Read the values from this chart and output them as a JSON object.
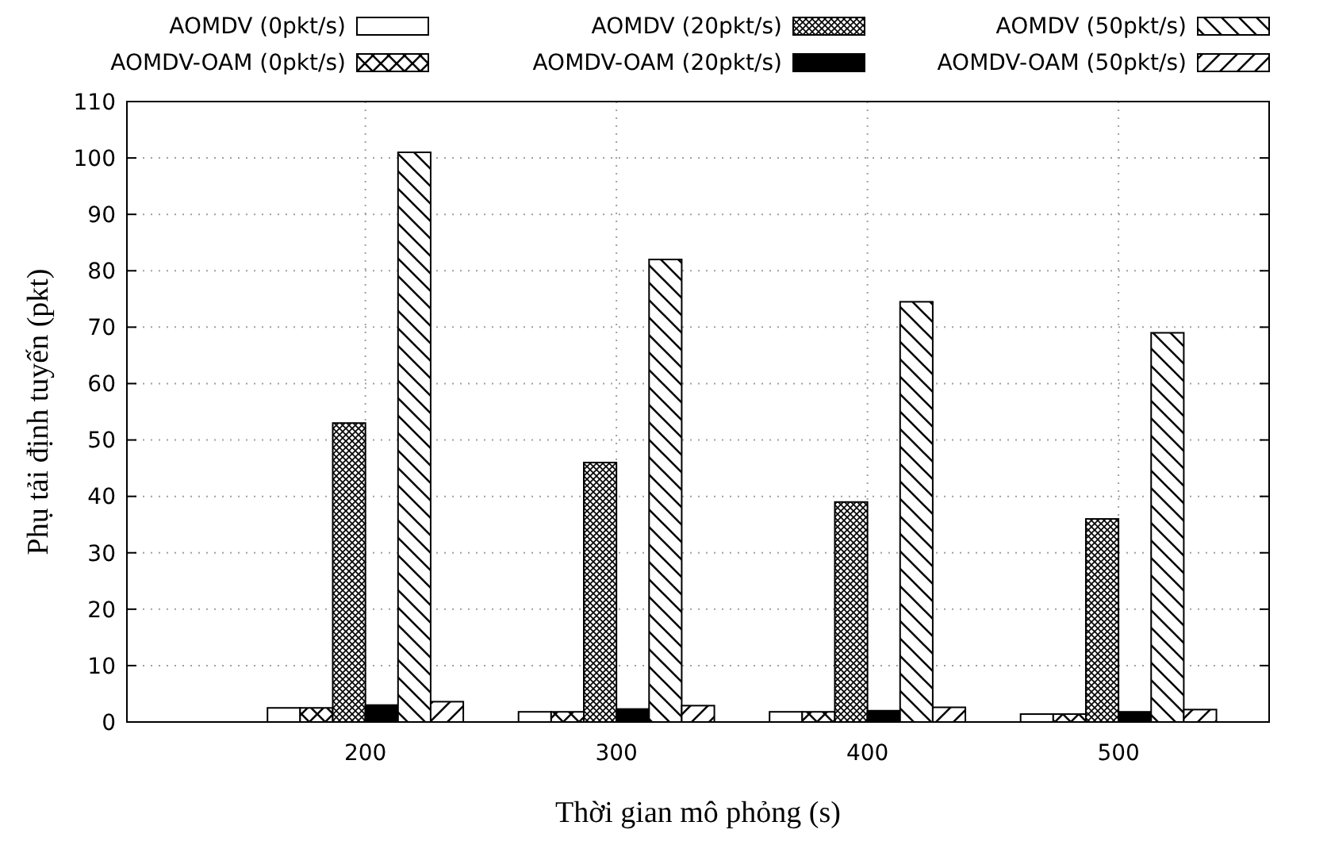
{
  "chart_data": {
    "type": "bar",
    "xlabel": "Thời gian mô phỏng (s)",
    "ylabel": "Phụ tải định tuyến (pkt)",
    "categories": [
      "200",
      "300",
      "400",
      "500"
    ],
    "ylim": [
      0,
      110
    ],
    "yticks": [
      0,
      10,
      20,
      30,
      40,
      50,
      60,
      70,
      80,
      90,
      100,
      110
    ],
    "grid": true,
    "legend": "top",
    "series": [
      {
        "name": "AOMDV (0pkt/s)",
        "color": "#ffffff",
        "values": [
          2.5,
          1.8,
          1.8,
          1.4
        ]
      },
      {
        "name": "AOMDV-OAM (0pkt/s)",
        "color": "#000000",
        "values": [
          2.5,
          1.8,
          1.8,
          1.4
        ]
      },
      {
        "name": "AOMDV (20pkt/s)",
        "color": "#000000",
        "values": [
          53,
          46,
          39,
          36
        ]
      },
      {
        "name": "AOMDV-OAM (20pkt/s)",
        "color": "#000000",
        "values": [
          3,
          2.3,
          2,
          1.8
        ]
      },
      {
        "name": "AOMDV (50pkt/s)",
        "color": "#000000",
        "values": [
          101,
          82,
          74.5,
          69
        ]
      },
      {
        "name": "AOMDV-OAM (50pkt/s)",
        "color": "#000000",
        "values": [
          3.6,
          2.9,
          2.6,
          2.2
        ]
      }
    ]
  }
}
